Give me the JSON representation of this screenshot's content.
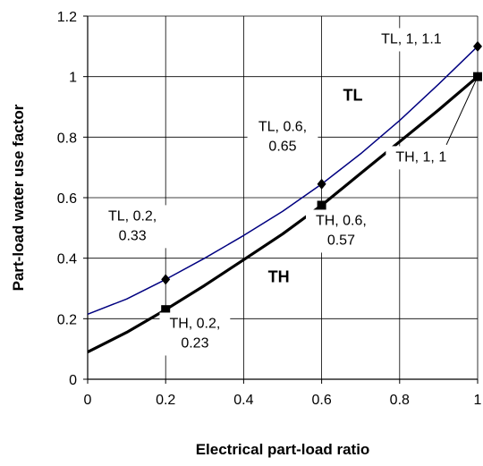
{
  "chart_data": {
    "type": "line",
    "xlabel": "Electrical part-load ratio",
    "ylabel": "Part-load water use factor",
    "xlim": [
      0,
      1
    ],
    "ylim": [
      0,
      1.2
    ],
    "xticks": [
      "0",
      "0.2",
      "0.4",
      "0.6",
      "0.8",
      "1"
    ],
    "yticks": [
      "0",
      "0.2",
      "0.4",
      "0.6",
      "0.8",
      "1",
      "1.2"
    ],
    "grid": true,
    "series": [
      {
        "name": "TL",
        "color": "#000080",
        "marker": "diamond",
        "curve": [
          [
            0,
            0.215
          ],
          [
            0.1,
            0.265
          ],
          [
            0.2,
            0.33
          ],
          [
            0.3,
            0.4
          ],
          [
            0.4,
            0.475
          ],
          [
            0.5,
            0.555
          ],
          [
            0.6,
            0.645
          ],
          [
            0.7,
            0.745
          ],
          [
            0.8,
            0.855
          ],
          [
            0.9,
            0.975
          ],
          [
            1,
            1.1
          ]
        ],
        "points": [
          [
            0.2,
            0.33
          ],
          [
            0.6,
            0.645
          ],
          [
            1,
            1.1
          ]
        ]
      },
      {
        "name": "TH",
        "color": "#000000",
        "marker": "square",
        "curve": [
          [
            0,
            0.09
          ],
          [
            0.1,
            0.155
          ],
          [
            0.2,
            0.23
          ],
          [
            0.3,
            0.31
          ],
          [
            0.4,
            0.395
          ],
          [
            0.5,
            0.48
          ],
          [
            0.6,
            0.575
          ],
          [
            0.7,
            0.68
          ],
          [
            0.8,
            0.785
          ],
          [
            0.9,
            0.89
          ],
          [
            1,
            1.0
          ]
        ],
        "points": [
          [
            0.2,
            0.23
          ],
          [
            0.6,
            0.575
          ],
          [
            1,
            1.0
          ]
        ]
      }
    ],
    "region_labels": [
      {
        "text": "TL",
        "x": 0.68,
        "y": 0.92
      },
      {
        "text": "TH",
        "x": 0.49,
        "y": 0.32
      }
    ],
    "annotations": [
      {
        "lines": [
          "TL, 1, 1.1"
        ],
        "x": 0.83,
        "y": 1.11
      },
      {
        "lines": [
          "TL, 0.6,",
          "0.65"
        ],
        "x": 0.5,
        "y": 0.82
      },
      {
        "lines": [
          "TL, 0.2,",
          "0.33"
        ],
        "x": 0.115,
        "y": 0.525
      },
      {
        "lines": [
          "TH, 0.6,",
          "0.57"
        ],
        "x": 0.65,
        "y": 0.51
      },
      {
        "lines": [
          "TH, 0.2,",
          "0.23"
        ],
        "x": 0.275,
        "y": 0.17
      },
      {
        "lines": [
          "TH, 1, 1"
        ],
        "x": 0.855,
        "y": 0.72
      }
    ],
    "leaders": [
      {
        "from": [
          1,
          1
        ],
        "to": [
          0.92,
          0.775
        ]
      }
    ]
  }
}
